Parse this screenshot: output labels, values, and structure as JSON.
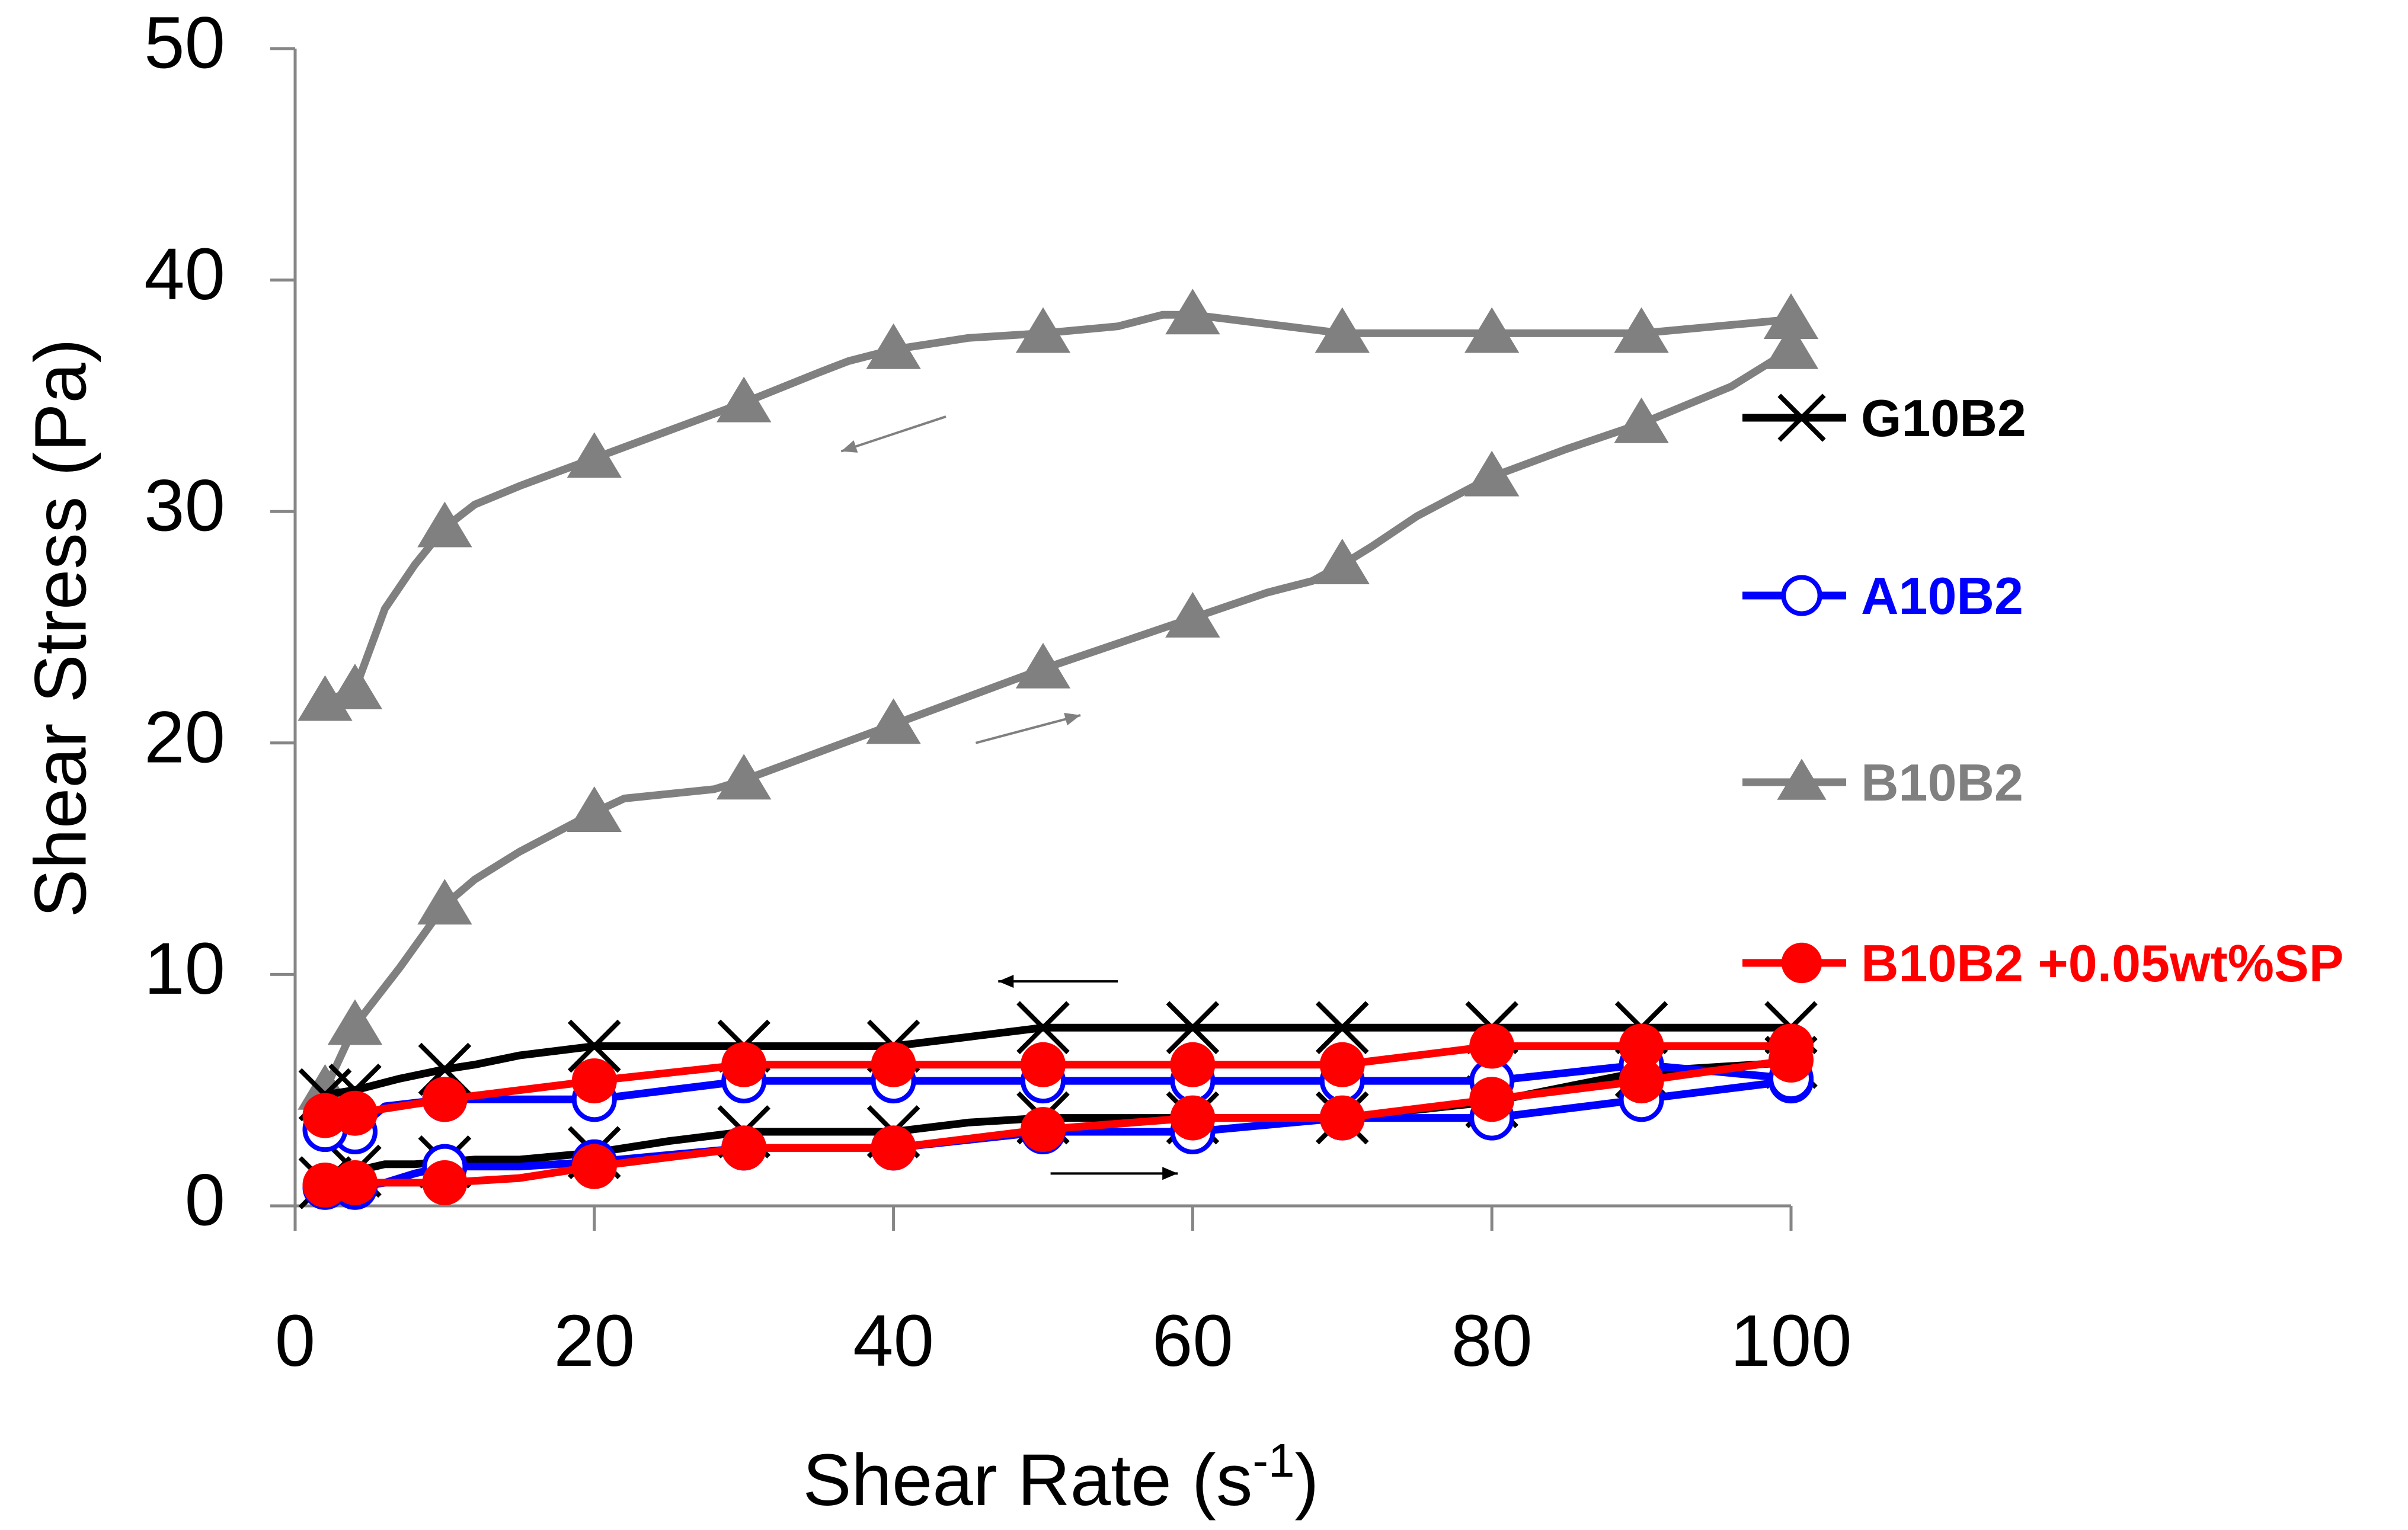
{
  "chart_data": {
    "type": "line",
    "xlabel": "Shear Rate (s",
    "xlabel_sup": "-1",
    "xlabel_close": ")",
    "ylabel": "Shear Stress (Pa)",
    "xlim": [
      0,
      100
    ],
    "ylim": [
      0,
      50
    ],
    "x_ticks": [
      0,
      20,
      40,
      60,
      80,
      100
    ],
    "y_ticks": [
      0,
      10,
      20,
      30,
      40,
      50
    ],
    "grid": false,
    "legend_placement": "right",
    "series": [
      {
        "name": "G10B2",
        "color": "#000000",
        "marker": "x",
        "up": {
          "x": [
            2,
            4,
            6,
            8,
            10,
            12,
            15,
            20,
            25,
            30,
            35,
            40,
            45,
            50,
            55,
            60,
            65,
            70,
            80,
            90,
            100
          ],
          "y": [
            1.0,
            1.5,
            1.8,
            1.8,
            1.9,
            2.0,
            2.0,
            2.3,
            2.8,
            3.2,
            3.2,
            3.2,
            3.6,
            3.8,
            3.8,
            3.8,
            3.8,
            3.8,
            4.5,
            5.8,
            6.2
          ]
        },
        "down": {
          "x": [
            100,
            90,
            80,
            70,
            60,
            50,
            45,
            40,
            30,
            20,
            15,
            12,
            10,
            7,
            4,
            2
          ],
          "y": [
            7.7,
            7.7,
            7.7,
            7.7,
            7.7,
            7.7,
            7.3,
            6.9,
            6.9,
            6.9,
            6.5,
            6.1,
            5.9,
            5.5,
            5.0,
            4.8
          ]
        },
        "up_marker_x": [
          2,
          4,
          10,
          20,
          30,
          40,
          50,
          60,
          70,
          80,
          90,
          100
        ],
        "down_marker_x": [
          100,
          90,
          80,
          70,
          60,
          50,
          40,
          30,
          20,
          10,
          4,
          2
        ]
      },
      {
        "name": "A10B2",
        "color": "#0000ff",
        "marker": "open-circle",
        "up": {
          "x": [
            2,
            4,
            6,
            8,
            10,
            15,
            20,
            30,
            40,
            50,
            60,
            70,
            80,
            90,
            100
          ],
          "y": [
            0.8,
            0.8,
            1.0,
            1.4,
            1.7,
            1.7,
            1.9,
            2.5,
            2.5,
            3.2,
            3.2,
            3.8,
            3.8,
            4.6,
            5.4
          ]
        },
        "down": {
          "x": [
            100,
            90,
            80,
            70,
            60,
            50,
            40,
            30,
            20,
            10,
            6,
            4,
            2
          ],
          "y": [
            5.5,
            6.1,
            5.4,
            5.4,
            5.4,
            5.4,
            5.4,
            5.4,
            4.6,
            4.6,
            4.3,
            3.2,
            3.3
          ]
        },
        "up_marker_x": [
          2,
          4,
          10,
          20,
          30,
          40,
          50,
          60,
          70,
          80,
          90,
          100
        ],
        "down_marker_x": [
          100,
          90,
          80,
          70,
          60,
          50,
          40,
          30,
          20,
          10,
          4,
          2
        ]
      },
      {
        "name": "B10B2",
        "color": "#808080",
        "marker": "triangle",
        "up": {
          "x": [
            2,
            4,
            7,
            10,
            12,
            15,
            20,
            22,
            25,
            28,
            30,
            35,
            40,
            45,
            50,
            55,
            60,
            65,
            68,
            70,
            72,
            75,
            80,
            85,
            90,
            93,
            96,
            100
          ],
          "y": [
            5.0,
            7.8,
            10.3,
            13.0,
            14.1,
            15.3,
            17.0,
            17.6,
            17.8,
            18.0,
            18.4,
            19.6,
            20.8,
            22.0,
            23.2,
            24.3,
            25.4,
            26.5,
            27.0,
            27.7,
            28.5,
            29.8,
            31.5,
            32.7,
            33.8,
            34.6,
            35.4,
            37.0
          ]
        },
        "down": {
          "x": [
            100,
            95,
            90,
            85,
            80,
            75,
            70,
            65,
            60,
            58,
            55,
            50,
            45,
            40,
            37,
            35,
            30,
            25,
            20,
            15,
            12,
            10,
            8,
            6,
            4,
            2
          ],
          "y": [
            38.3,
            38.0,
            37.7,
            37.7,
            37.7,
            37.7,
            37.7,
            38.1,
            38.5,
            38.5,
            38.0,
            37.7,
            37.5,
            37.0,
            36.5,
            36.0,
            34.7,
            33.5,
            32.3,
            31.1,
            30.3,
            29.3,
            27.7,
            25.8,
            22.3,
            21.8
          ]
        },
        "up_marker_x": [
          2,
          4,
          10,
          20,
          30,
          40,
          50,
          60,
          70,
          80,
          90,
          100
        ],
        "down_marker_x": [
          100,
          90,
          80,
          70,
          60,
          50,
          40,
          30,
          20,
          10,
          4,
          2
        ]
      },
      {
        "name": "B10B2 +0.05wt%SP",
        "color": "#ff0000",
        "marker": "filled-circle",
        "up": {
          "x": [
            2,
            4,
            10,
            15,
            20,
            30,
            40,
            50,
            60,
            70,
            80,
            90,
            100
          ],
          "y": [
            0.9,
            1.0,
            1.0,
            1.2,
            1.7,
            2.5,
            2.5,
            3.3,
            3.8,
            3.8,
            4.6,
            5.4,
            6.3
          ]
        },
        "down": {
          "x": [
            100,
            90,
            80,
            70,
            60,
            50,
            40,
            30,
            20,
            10,
            4,
            2
          ],
          "y": [
            6.9,
            6.9,
            6.9,
            6.1,
            6.1,
            6.1,
            6.1,
            6.1,
            5.4,
            4.6,
            4.0,
            3.9
          ]
        },
        "up_marker_x": [
          2,
          4,
          10,
          20,
          30,
          40,
          50,
          60,
          70,
          80,
          90,
          100
        ],
        "down_marker_x": [
          100,
          90,
          80,
          70,
          60,
          50,
          40,
          30,
          20,
          10,
          4,
          2
        ]
      }
    ],
    "annotations": [
      {
        "type": "arrow",
        "direction": "left",
        "color": "#808080",
        "from": [
          43.5,
          34.1
        ],
        "to": [
          36.5,
          32.6
        ]
      },
      {
        "type": "arrow",
        "direction": "right",
        "color": "#808080",
        "from": [
          45.5,
          20.0
        ],
        "to": [
          52.5,
          21.2
        ]
      },
      {
        "type": "arrow",
        "direction": "left",
        "color": "#000000",
        "from": [
          55.0,
          9.7
        ],
        "to": [
          47.0,
          9.7
        ]
      },
      {
        "type": "arrow",
        "direction": "right",
        "color": "#000000",
        "from": [
          50.5,
          1.4
        ],
        "to": [
          59.0,
          1.4
        ]
      }
    ]
  }
}
